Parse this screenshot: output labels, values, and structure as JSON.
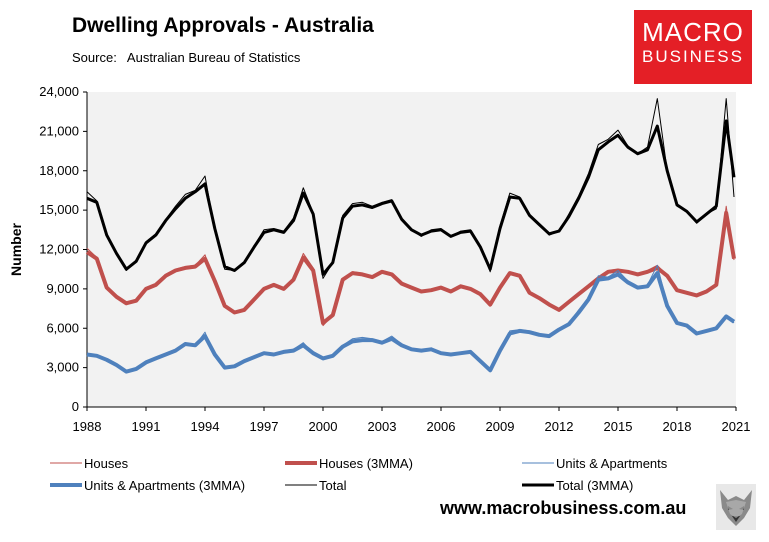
{
  "header": {
    "title": "Dwelling Approvals - Australia",
    "source": "Source:   Australian Bureau of Statistics"
  },
  "logo": {
    "line1": "MACRO",
    "line2": "BUSINESS"
  },
  "footer": {
    "url": "www.macrobusiness.com.au"
  },
  "icons": {
    "wolf": "wolf-logo-icon"
  },
  "chart_data": {
    "type": "line",
    "ylabel": "Number",
    "xlabel": "",
    "ylim": [
      0,
      24000
    ],
    "xlim": [
      1988,
      2021
    ],
    "y_ticks": [
      "0",
      "3,000",
      "6,000",
      "9,000",
      "12,000",
      "15,000",
      "18,000",
      "21,000",
      "24,000"
    ],
    "x_ticks": [
      "1988",
      "1991",
      "1994",
      "1997",
      "2000",
      "2003",
      "2006",
      "2009",
      "2012",
      "2015",
      "2018",
      "2021"
    ],
    "grid": false,
    "plot_background": "#f2f2f2",
    "legend_position": "bottom",
    "series": [
      {
        "name": "Houses",
        "color": "#c0504d",
        "width": 1,
        "x": [
          1988.0,
          1988.5,
          1989.0,
          1989.5,
          1990.0,
          1990.5,
          1991.0,
          1991.5,
          1992.0,
          1992.5,
          1993.0,
          1993.5,
          1994.0,
          1994.5,
          1995.0,
          1995.5,
          1996.0,
          1996.5,
          1997.0,
          1997.5,
          1998.0,
          1998.5,
          1999.0,
          1999.5,
          2000.0,
          2000.5,
          2001.0,
          2001.5,
          2002.0,
          2002.5,
          2003.0,
          2003.5,
          2004.0,
          2004.5,
          2005.0,
          2005.5,
          2006.0,
          2006.5,
          2007.0,
          2007.5,
          2008.0,
          2008.5,
          2009.0,
          2009.5,
          2010.0,
          2010.5,
          2011.0,
          2011.5,
          2012.0,
          2012.5,
          2013.0,
          2013.5,
          2014.0,
          2014.5,
          2015.0,
          2015.5,
          2016.0,
          2016.5,
          2017.0,
          2017.5,
          2018.0,
          2018.5,
          2019.0,
          2019.5,
          2020.0,
          2020.5,
          2020.9
        ],
        "y": [
          12100,
          11400,
          9000,
          8400,
          7800,
          8200,
          9000,
          9400,
          10100,
          10500,
          10700,
          10800,
          11600,
          9500,
          7600,
          7200,
          7400,
          8300,
          9100,
          9400,
          9000,
          9800,
          11700,
          10600,
          6200,
          7000,
          9800,
          10300,
          10200,
          9900,
          10400,
          10200,
          9500,
          9100,
          8700,
          8900,
          9200,
          8800,
          9300,
          9000,
          8700,
          7700,
          9200,
          10300,
          10100,
          8700,
          8300,
          7800,
          7300,
          8100,
          8600,
          9300,
          9900,
          10400,
          10500,
          10300,
          10100,
          10400,
          10800,
          10000,
          8900,
          8700,
          8400,
          8800,
          9200,
          15300,
          11200
        ]
      },
      {
        "name": "Houses (3MMA)",
        "color": "#c0504d",
        "width": 4,
        "x": [
          1988.0,
          1988.5,
          1989.0,
          1989.5,
          1990.0,
          1990.5,
          1991.0,
          1991.5,
          1992.0,
          1992.5,
          1993.0,
          1993.5,
          1994.0,
          1994.5,
          1995.0,
          1995.5,
          1996.0,
          1996.5,
          1997.0,
          1997.5,
          1998.0,
          1998.5,
          1999.0,
          1999.5,
          2000.0,
          2000.5,
          2001.0,
          2001.5,
          2002.0,
          2002.5,
          2003.0,
          2003.5,
          2004.0,
          2004.5,
          2005.0,
          2005.5,
          2006.0,
          2006.5,
          2007.0,
          2007.5,
          2008.0,
          2008.5,
          2009.0,
          2009.5,
          2010.0,
          2010.5,
          2011.0,
          2011.5,
          2012.0,
          2012.5,
          2013.0,
          2013.5,
          2014.0,
          2014.5,
          2015.0,
          2015.5,
          2016.0,
          2016.5,
          2017.0,
          2017.5,
          2018.0,
          2018.5,
          2019.0,
          2019.5,
          2020.0,
          2020.5,
          2020.9
        ],
        "y": [
          11800,
          11300,
          9100,
          8400,
          7900,
          8100,
          9000,
          9300,
          10000,
          10400,
          10600,
          10700,
          11300,
          9600,
          7700,
          7200,
          7400,
          8200,
          9000,
          9300,
          9000,
          9700,
          11400,
          10400,
          6400,
          7000,
          9700,
          10200,
          10100,
          9900,
          10300,
          10100,
          9400,
          9100,
          8800,
          8900,
          9100,
          8800,
          9200,
          9000,
          8600,
          7800,
          9100,
          10200,
          10000,
          8700,
          8300,
          7800,
          7400,
          8000,
          8600,
          9200,
          9800,
          10300,
          10400,
          10300,
          10100,
          10300,
          10600,
          10000,
          8900,
          8700,
          8500,
          8800,
          9300,
          14800,
          11300
        ]
      },
      {
        "name": "Units & Apartments",
        "color": "#4f81bd",
        "width": 1,
        "x": [
          1988.0,
          1988.5,
          1989.0,
          1989.5,
          1990.0,
          1990.5,
          1991.0,
          1991.5,
          1992.0,
          1992.5,
          1993.0,
          1993.5,
          1994.0,
          1994.5,
          1995.0,
          1995.5,
          1996.0,
          1996.5,
          1997.0,
          1997.5,
          1998.0,
          1998.5,
          1999.0,
          1999.5,
          2000.0,
          2000.5,
          2001.0,
          2001.5,
          2002.0,
          2002.5,
          2003.0,
          2003.5,
          2004.0,
          2004.5,
          2005.0,
          2005.5,
          2006.0,
          2006.5,
          2007.0,
          2007.5,
          2008.0,
          2008.5,
          2009.0,
          2009.5,
          2010.0,
          2010.5,
          2011.0,
          2011.5,
          2012.0,
          2012.5,
          2013.0,
          2013.5,
          2014.0,
          2014.5,
          2015.0,
          2015.5,
          2016.0,
          2016.5,
          2017.0,
          2017.5,
          2018.0,
          2018.5,
          2019.0,
          2019.5,
          2020.0,
          2020.5,
          2020.9
        ],
        "y": [
          4100,
          3900,
          3600,
          3100,
          2700,
          2900,
          3500,
          3700,
          4000,
          4400,
          4900,
          4700,
          5700,
          3900,
          2900,
          3100,
          3500,
          3800,
          4200,
          4000,
          4300,
          4400,
          4900,
          4100,
          3600,
          3900,
          4700,
          5200,
          5300,
          5200,
          5000,
          5400,
          4800,
          4400,
          4300,
          4500,
          4100,
          4000,
          4100,
          4300,
          3500,
          2700,
          4400,
          5800,
          5900,
          5800,
          5600,
          5400,
          6000,
          6400,
          7400,
          8300,
          10000,
          9900,
          10400,
          9600,
          9100,
          9300,
          10800,
          7800,
          6400,
          6300,
          5600,
          5800,
          5900,
          7000,
          6400
        ]
      },
      {
        "name": "Units & Apartments (3MMA)",
        "color": "#4f81bd",
        "width": 4,
        "x": [
          1988.0,
          1988.5,
          1989.0,
          1989.5,
          1990.0,
          1990.5,
          1991.0,
          1991.5,
          1992.0,
          1992.5,
          1993.0,
          1993.5,
          1994.0,
          1994.5,
          1995.0,
          1995.5,
          1996.0,
          1996.5,
          1997.0,
          1997.5,
          1998.0,
          1998.5,
          1999.0,
          1999.5,
          2000.0,
          2000.5,
          2001.0,
          2001.5,
          2002.0,
          2002.5,
          2003.0,
          2003.5,
          2004.0,
          2004.5,
          2005.0,
          2005.5,
          2006.0,
          2006.5,
          2007.0,
          2007.5,
          2008.0,
          2008.5,
          2009.0,
          2009.5,
          2010.0,
          2010.5,
          2011.0,
          2011.5,
          2012.0,
          2012.5,
          2013.0,
          2013.5,
          2014.0,
          2014.5,
          2015.0,
          2015.5,
          2016.0,
          2016.5,
          2017.0,
          2017.5,
          2018.0,
          2018.5,
          2019.0,
          2019.5,
          2020.0,
          2020.5,
          2020.9
        ],
        "y": [
          4000,
          3900,
          3600,
          3200,
          2700,
          2900,
          3400,
          3700,
          4000,
          4300,
          4800,
          4700,
          5400,
          4000,
          3000,
          3100,
          3500,
          3800,
          4100,
          4000,
          4200,
          4300,
          4700,
          4100,
          3700,
          3900,
          4600,
          5000,
          5100,
          5100,
          4900,
          5200,
          4700,
          4400,
          4300,
          4400,
          4100,
          4000,
          4100,
          4200,
          3500,
          2800,
          4300,
          5600,
          5800,
          5700,
          5500,
          5400,
          5900,
          6300,
          7200,
          8200,
          9700,
          9800,
          10100,
          9500,
          9100,
          9200,
          10200,
          7700,
          6400,
          6200,
          5600,
          5800,
          6000,
          6900,
          6500
        ]
      },
      {
        "name": "Total",
        "color": "#000000",
        "width": 1,
        "x": [
          1988.0,
          1988.5,
          1989.0,
          1989.5,
          1990.0,
          1990.5,
          1991.0,
          1991.5,
          1992.0,
          1992.5,
          1993.0,
          1993.5,
          1994.0,
          1994.5,
          1995.0,
          1995.5,
          1996.0,
          1996.5,
          1997.0,
          1997.5,
          1998.0,
          1998.5,
          1999.0,
          1999.5,
          2000.0,
          2000.5,
          2001.0,
          2001.5,
          2002.0,
          2002.5,
          2003.0,
          2003.5,
          2004.0,
          2004.5,
          2005.0,
          2005.5,
          2006.0,
          2006.5,
          2007.0,
          2007.5,
          2008.0,
          2008.5,
          2009.0,
          2009.5,
          2010.0,
          2010.5,
          2011.0,
          2011.5,
          2012.0,
          2012.5,
          2013.0,
          2013.5,
          2014.0,
          2014.5,
          2015.0,
          2015.5,
          2016.0,
          2016.5,
          2017.0,
          2017.5,
          2018.0,
          2018.5,
          2019.0,
          2019.5,
          2020.0,
          2020.5,
          2020.9
        ],
        "y": [
          16400,
          15700,
          13000,
          11700,
          10400,
          11200,
          12600,
          13200,
          14300,
          15300,
          16200,
          16500,
          17600,
          13500,
          10500,
          10400,
          11000,
          12300,
          13500,
          13600,
          13400,
          14400,
          16700,
          14800,
          9800,
          11000,
          14600,
          15500,
          15600,
          15300,
          15600,
          15800,
          14300,
          13500,
          13000,
          13500,
          13600,
          13000,
          13400,
          13500,
          12200,
          10300,
          13800,
          16300,
          16000,
          14600,
          13900,
          13100,
          13400,
          14700,
          16100,
          17800,
          20000,
          20400,
          21100,
          19900,
          19300,
          19800,
          23500,
          18000,
          15300,
          14900,
          14000,
          14700,
          15100,
          23500,
          16000
        ]
      },
      {
        "name": "Total (3MMA)",
        "color": "#000000",
        "width": 3,
        "x": [
          1988.0,
          1988.5,
          1989.0,
          1989.5,
          1990.0,
          1990.5,
          1991.0,
          1991.5,
          1992.0,
          1992.5,
          1993.0,
          1993.5,
          1994.0,
          1994.5,
          1995.0,
          1995.5,
          1996.0,
          1996.5,
          1997.0,
          1997.5,
          1998.0,
          1998.5,
          1999.0,
          1999.5,
          2000.0,
          2000.5,
          2001.0,
          2001.5,
          2002.0,
          2002.5,
          2003.0,
          2003.5,
          2004.0,
          2004.5,
          2005.0,
          2005.5,
          2006.0,
          2006.5,
          2007.0,
          2007.5,
          2008.0,
          2008.5,
          2009.0,
          2009.5,
          2010.0,
          2010.5,
          2011.0,
          2011.5,
          2012.0,
          2012.5,
          2013.0,
          2013.5,
          2014.0,
          2014.5,
          2015.0,
          2015.5,
          2016.0,
          2016.5,
          2017.0,
          2017.5,
          2018.0,
          2018.5,
          2019.0,
          2019.5,
          2020.0,
          2020.5,
          2020.9
        ],
        "y": [
          15900,
          15600,
          13100,
          11700,
          10500,
          11100,
          12500,
          13100,
          14200,
          15100,
          15900,
          16400,
          17000,
          13600,
          10700,
          10400,
          11000,
          12200,
          13300,
          13500,
          13300,
          14200,
          16300,
          14700,
          10100,
          11000,
          14400,
          15300,
          15400,
          15200,
          15500,
          15700,
          14300,
          13500,
          13100,
          13400,
          13500,
          13000,
          13300,
          13400,
          12200,
          10500,
          13600,
          16000,
          15900,
          14600,
          13900,
          13200,
          13400,
          14500,
          15900,
          17500,
          19600,
          20200,
          20700,
          19800,
          19300,
          19600,
          21400,
          18000,
          15400,
          14900,
          14100,
          14700,
          15300,
          21800,
          17500
        ]
      }
    ]
  }
}
